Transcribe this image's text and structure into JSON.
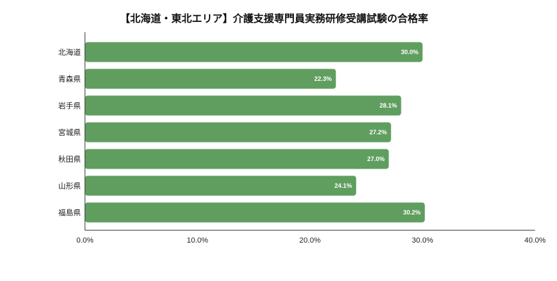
{
  "chart_data": {
    "type": "bar",
    "orientation": "horizontal",
    "title": "【北海道・東北エリア】介護支援専門員実務研修受講試験の合格率",
    "categories": [
      "北海道",
      "青森県",
      "岩手県",
      "宮城県",
      "秋田県",
      "山形県",
      "福島県"
    ],
    "values": [
      30.0,
      22.3,
      28.1,
      27.2,
      27.0,
      24.1,
      30.2
    ],
    "value_labels": [
      "30.0%",
      "22.3%",
      "28.1%",
      "27.2%",
      "27.0%",
      "24.1%",
      "30.2%"
    ],
    "xlim": [
      0,
      40
    ],
    "x_ticks": [
      0,
      10,
      20,
      30,
      40
    ],
    "x_tick_labels": [
      "0.0%",
      "10.0%",
      "20.0%",
      "30.0%",
      "40.0%"
    ],
    "xlabel": "",
    "ylabel": "",
    "grid": false,
    "legend": "none",
    "bar_color": "#5f9e5f"
  }
}
